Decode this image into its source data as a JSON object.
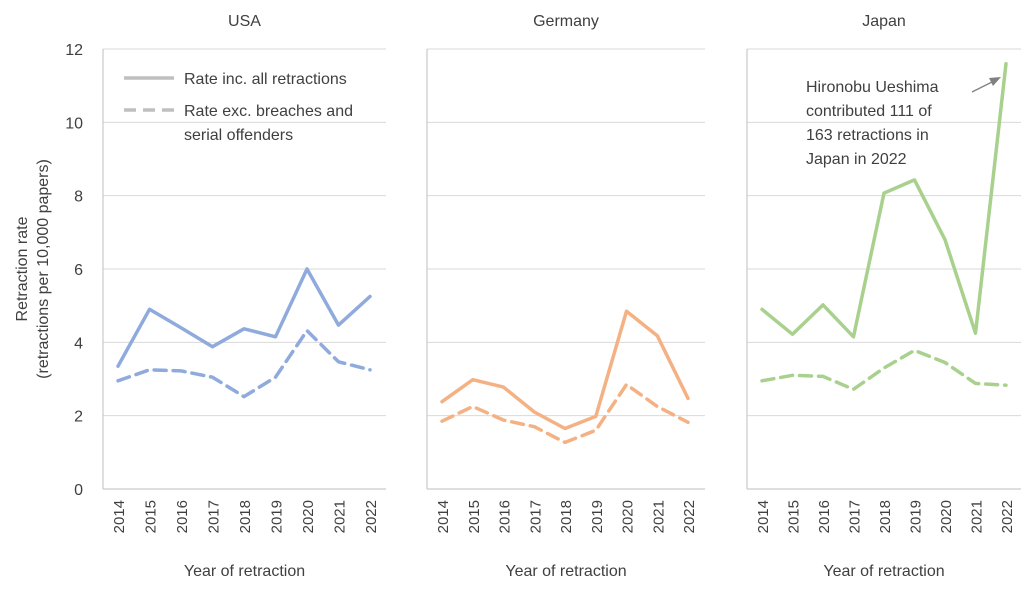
{
  "y_axis": {
    "label_line1": "Retraction rate",
    "label_line2": "(retractions per 10,000 papers)",
    "ticks": [
      "0",
      "2",
      "4",
      "6",
      "8",
      "10",
      "12"
    ]
  },
  "legend": {
    "all_label": "Rate inc. all retractions",
    "exc_label_line1": "Rate exc. breaches and",
    "exc_label_line2": "serial offenders",
    "color": "#BFBFBF"
  },
  "annotation": {
    "lines": [
      "Hironobu Ueshima",
      "contributed 111 of",
      "163 retractions in",
      "Japan in 2022"
    ]
  },
  "chart_data": [
    {
      "type": "line",
      "title": "USA",
      "xlabel": "Year of retraction",
      "ylabel": "Retraction rate (retractions per 10,000 papers)",
      "ylim": [
        0,
        12
      ],
      "grid": true,
      "color": "#8FAADC",
      "x": [
        "2014",
        "2015",
        "2016",
        "2017",
        "2018",
        "2019",
        "2020",
        "2021",
        "2022"
      ],
      "series": [
        {
          "name": "Rate inc. all retractions",
          "style": "solid",
          "values": [
            3.35,
            4.9,
            4.4,
            3.88,
            4.37,
            4.15,
            6.0,
            4.47,
            5.25
          ]
        },
        {
          "name": "Rate exc. breaches and serial offenders",
          "style": "dashed",
          "values": [
            2.95,
            3.25,
            3.22,
            3.05,
            2.52,
            3.05,
            4.32,
            3.47,
            3.25
          ]
        }
      ]
    },
    {
      "type": "line",
      "title": "Germany",
      "xlabel": "Year of retraction",
      "ylim": [
        0,
        12
      ],
      "grid": true,
      "color": "#F4B183",
      "x": [
        "2014",
        "2015",
        "2016",
        "2017",
        "2018",
        "2019",
        "2020",
        "2021",
        "2022"
      ],
      "series": [
        {
          "name": "Rate inc. all retractions",
          "style": "solid",
          "values": [
            2.38,
            2.98,
            2.78,
            2.1,
            1.65,
            1.98,
            4.85,
            4.18,
            2.47
          ]
        },
        {
          "name": "Rate exc. breaches and serial offenders",
          "style": "dashed",
          "values": [
            1.85,
            2.25,
            1.88,
            1.7,
            1.27,
            1.6,
            2.85,
            2.25,
            1.82
          ]
        }
      ]
    },
    {
      "type": "line",
      "title": "Japan",
      "xlabel": "Year of retraction",
      "ylim": [
        0,
        12
      ],
      "grid": true,
      "color": "#A9D18E",
      "x": [
        "2014",
        "2015",
        "2016",
        "2017",
        "2018",
        "2019",
        "2020",
        "2021",
        "2022"
      ],
      "series": [
        {
          "name": "Rate inc. all retractions",
          "style": "solid",
          "values": [
            4.9,
            4.22,
            5.02,
            4.15,
            8.07,
            8.43,
            6.8,
            4.25,
            11.6
          ]
        },
        {
          "name": "Rate exc. breaches and serial offenders",
          "style": "dashed",
          "values": [
            2.95,
            3.1,
            3.07,
            2.72,
            3.3,
            3.78,
            3.45,
            2.88,
            2.83
          ]
        }
      ]
    }
  ]
}
